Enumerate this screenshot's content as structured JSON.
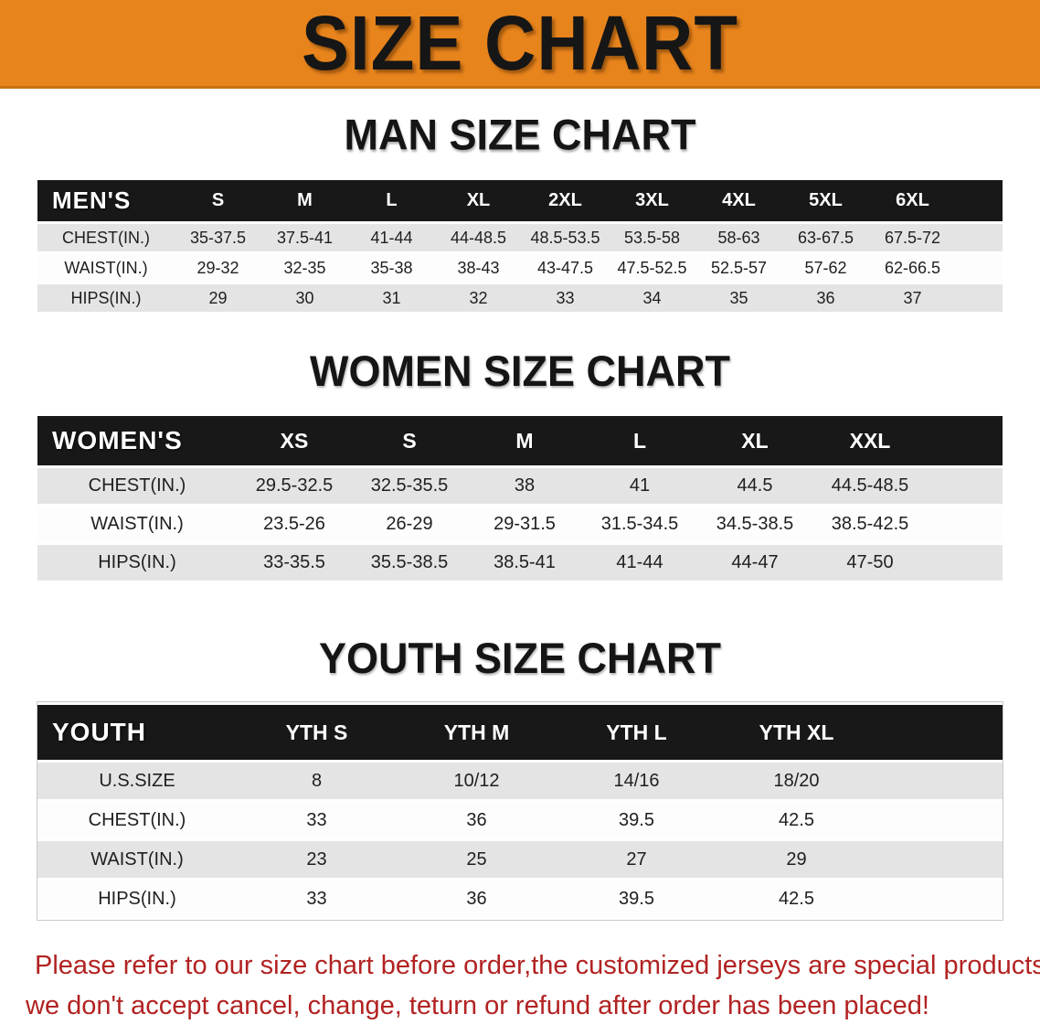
{
  "banner": {
    "title": "SIZE CHART",
    "bg_color": "#E8841C",
    "text_color": "#161616"
  },
  "sections": [
    {
      "heading": "MAN SIZE CHART",
      "table": {
        "header_label": "MEN'S",
        "sizes": [
          "S",
          "M",
          "L",
          "XL",
          "2XL",
          "3XL",
          "4XL",
          "5XL",
          "6XL"
        ],
        "rows": [
          {
            "label": "CHEST(IN.)",
            "values": [
              "35-37.5",
              "37.5-41",
              "41-44",
              "44-48.5",
              "48.5-53.5",
              "53.5-58",
              "58-63",
              "63-67.5",
              "67.5-72"
            ]
          },
          {
            "label": "WAIST(IN.)",
            "values": [
              "29-32",
              "32-35",
              "35-38",
              "38-43",
              "43-47.5",
              "47.5-52.5",
              "52.5-57",
              "57-62",
              "62-66.5"
            ]
          },
          {
            "label": "HIPS(IN.)",
            "values": [
              "29",
              "30",
              "31",
              "32",
              "33",
              "34",
              "35",
              "36",
              "37"
            ]
          }
        ]
      }
    },
    {
      "heading": "WOMEN SIZE CHART",
      "table": {
        "header_label": "WOMEN'S",
        "sizes": [
          "XS",
          "S",
          "M",
          "L",
          "XL",
          "XXL"
        ],
        "rows": [
          {
            "label": "CHEST(IN.)",
            "values": [
              "29.5-32.5",
              "32.5-35.5",
              "38",
              "41",
              "44.5",
              "44.5-48.5"
            ]
          },
          {
            "label": "WAIST(IN.)",
            "values": [
              "23.5-26",
              "26-29",
              "29-31.5",
              "31.5-34.5",
              "34.5-38.5",
              "38.5-42.5"
            ]
          },
          {
            "label": "HIPS(IN.)",
            "values": [
              "33-35.5",
              "35.5-38.5",
              "38.5-41",
              "41-44",
              "44-47",
              "47-50"
            ]
          }
        ]
      }
    },
    {
      "heading": "YOUTH SIZE CHART",
      "table": {
        "header_label": "YOUTH",
        "sizes": [
          "YTH S",
          "YTH M",
          "YTH L",
          "YTH XL"
        ],
        "rows": [
          {
            "label": "U.S.SIZE",
            "values": [
              "8",
              "10/12",
              "14/16",
              "18/20"
            ]
          },
          {
            "label": "CHEST(IN.)",
            "values": [
              "33",
              "36",
              "39.5",
              "42.5"
            ]
          },
          {
            "label": "WAIST(IN.)",
            "values": [
              "23",
              "25",
              "27",
              "29"
            ]
          },
          {
            "label": "HIPS(IN.)",
            "values": [
              "33",
              "36",
              "39.5",
              "42.5"
            ]
          }
        ]
      }
    }
  ],
  "footer_note": {
    "line1": "Please refer to our size chart before order,the customized jerseys are special products,",
    "line2": "we don't accept cancel, change, teturn or refund after order has been placed!",
    "color": "#B22222"
  },
  "colors": {
    "table_header_bg": "#181818",
    "row_gray": "#E4E4E4",
    "row_white": "#FDFDFD"
  }
}
